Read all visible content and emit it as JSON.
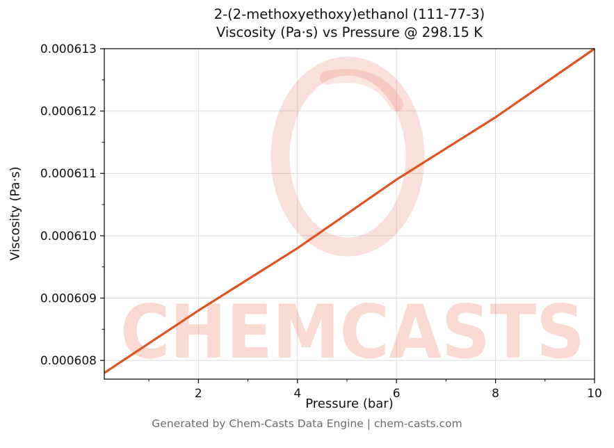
{
  "title_line1": "2-(2-methoxyethoxy)ethanol (111-77-3)",
  "title_line2": "Viscosity (Pa·s) vs Pressure @ 298.15 K",
  "footer": "Generated by Chem-Casts Data Engine | chem-casts.com",
  "watermark": "CHEMCASTS",
  "chart_data": {
    "type": "line",
    "title": "2-(2-methoxyethoxy)ethanol (111-77-3) Viscosity (Pa·s) vs Pressure @ 298.15 K",
    "xlabel": "Pressure (bar)",
    "ylabel": "Viscosity (Pa·s)",
    "x": [
      0.1,
      2,
      4,
      6,
      8,
      10
    ],
    "y": [
      0.0006078,
      0.0006088,
      0.0006098,
      0.0006109,
      0.0006119,
      0.000613
    ],
    "xlim": [
      0.1,
      10
    ],
    "ylim": [
      0.0006077,
      0.000613
    ],
    "xticks": [
      2,
      4,
      6,
      8,
      10
    ],
    "xtick_labels": [
      "2",
      "4",
      "6",
      "8",
      "10"
    ],
    "xticks_minor": [
      1,
      3,
      5,
      7,
      9
    ],
    "yticks": [
      0.000608,
      0.000609,
      0.00061,
      0.000611,
      0.000612,
      0.000613
    ],
    "ytick_labels": [
      "0.000608",
      "0.000609",
      "0.000610",
      "0.000611",
      "0.000612",
      "0.000613"
    ],
    "yticks_minor": [
      0.0006085,
      0.0006095,
      0.0006105,
      0.0006115,
      0.0006125
    ],
    "line_color": "#e0521e",
    "grid": true,
    "grid_color": "#dadada",
    "watermark_color": "#e24a28",
    "legend": "none"
  }
}
